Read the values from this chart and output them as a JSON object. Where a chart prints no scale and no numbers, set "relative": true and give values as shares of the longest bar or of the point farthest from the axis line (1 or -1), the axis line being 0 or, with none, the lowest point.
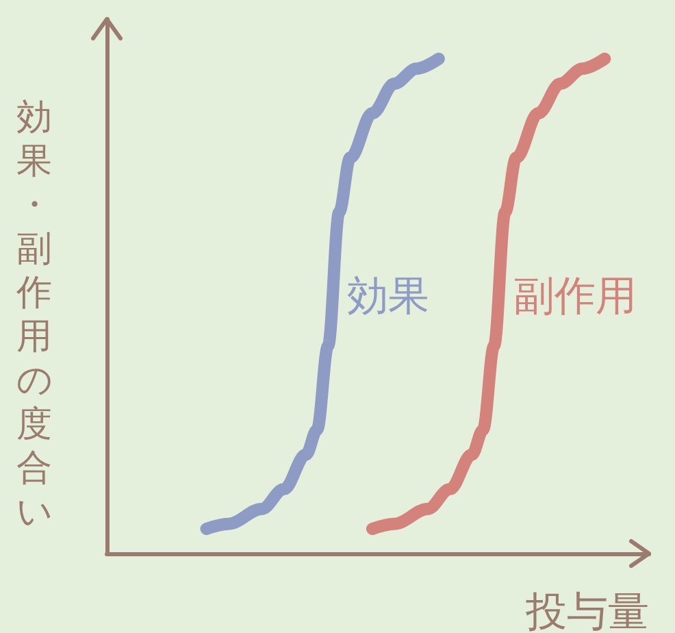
{
  "chart_data": {
    "type": "line",
    "relative": true,
    "xlabel": "投与量",
    "ylabel": "効果・副作用の度合い",
    "categories": [
      null,
      null,
      null,
      null,
      null,
      null,
      null,
      null,
      null,
      null,
      null,
      null,
      null,
      null,
      null,
      null,
      null,
      null,
      null,
      null,
      null,
      null,
      null,
      null,
      null,
      null,
      null,
      null,
      null,
      null,
      null,
      null,
      null,
      null,
      null,
      null,
      null,
      null,
      null,
      null,
      null,
      null,
      null,
      null,
      null,
      null,
      null,
      null,
      null,
      null
    ],
    "series": [
      {
        "name": "効果",
        "color": "#8e9bc4",
        "values": [
          null,
          null,
          null,
          null,
          null,
          null,
          null,
          null,
          null,
          0.05,
          null,
          0.06,
          null,
          null,
          0.09,
          null,
          0.13,
          null,
          0.2,
          0.25,
          0.42,
          0.69,
          0.8,
          null,
          0.89,
          null,
          0.95,
          null,
          0.98,
          null,
          1,
          null,
          null,
          null,
          null,
          null,
          null,
          null,
          null,
          null,
          null,
          null,
          null,
          null,
          null,
          null,
          null,
          null,
          null,
          null
        ]
      },
      {
        "name": "副作用",
        "color": "#d4837c",
        "values": [
          null,
          null,
          null,
          null,
          null,
          null,
          null,
          null,
          null,
          null,
          null,
          null,
          null,
          null,
          null,
          null,
          null,
          null,
          null,
          null,
          null,
          null,
          null,
          null,
          0.05,
          null,
          0.06,
          null,
          null,
          0.09,
          null,
          0.13,
          null,
          0.2,
          0.25,
          0.42,
          0.69,
          0.8,
          null,
          0.89,
          null,
          0.95,
          null,
          0.98,
          null,
          1,
          null,
          null,
          null,
          null
        ]
      }
    ]
  }
}
